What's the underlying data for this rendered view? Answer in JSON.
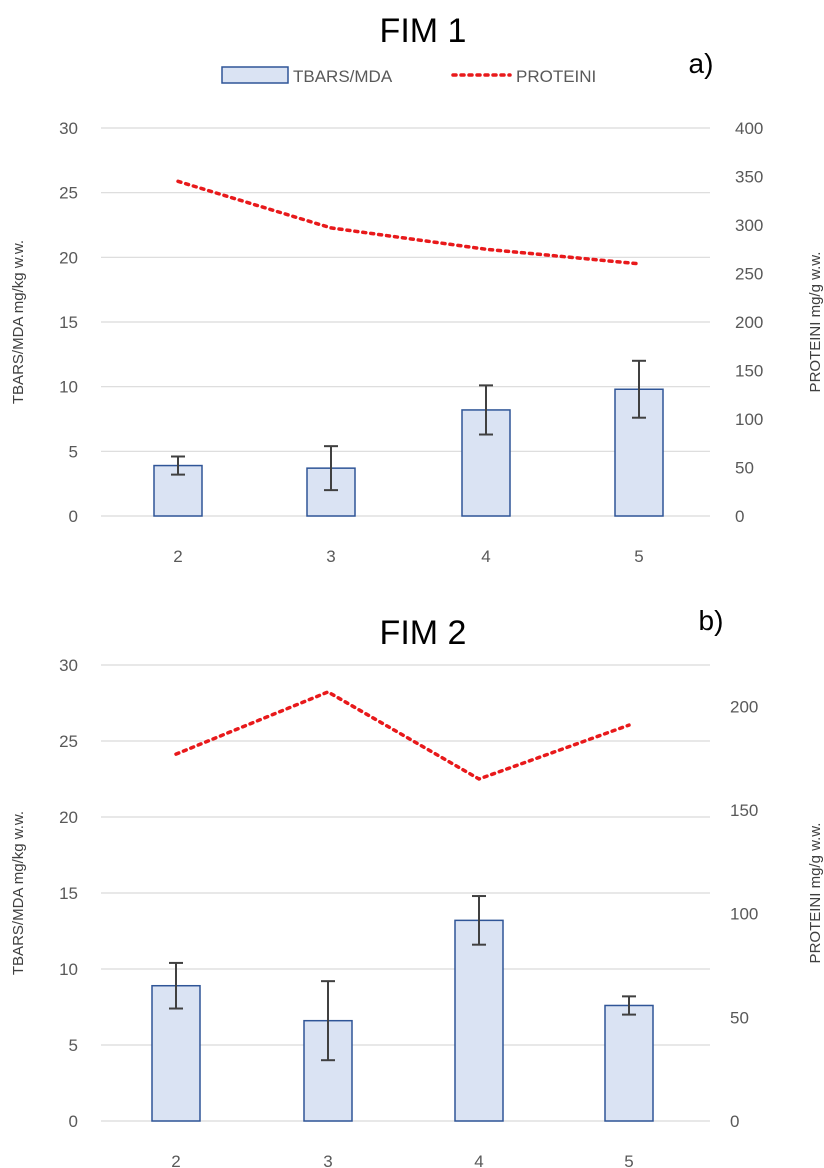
{
  "chart_data": [
    {
      "type": "bar",
      "title": "FIM 1",
      "panel_label": "a)",
      "categories": [
        "2",
        "3",
        "4",
        "5"
      ],
      "legend": {
        "position": "top",
        "entries": [
          "TBARS/MDA",
          "PROTEINI"
        ]
      },
      "ylabel": "TBARS/MDA mg/kg w.w.",
      "y2label": "PROTEINI mg/g w.w.",
      "ylim": [
        0,
        30
      ],
      "yticks": [
        "0",
        "5",
        "10",
        "15",
        "20",
        "25",
        "30"
      ],
      "y2lim": [
        0,
        400
      ],
      "y2ticks": [
        "0",
        "50",
        "100",
        "150",
        "200",
        "250",
        "300",
        "350",
        "400"
      ],
      "grid": true,
      "series": [
        {
          "name": "TBARS/MDA",
          "kind": "bar",
          "axis": "left",
          "values": [
            3.9,
            3.7,
            8.2,
            9.8
          ],
          "errors": [
            0.7,
            1.7,
            1.9,
            2.2
          ]
        },
        {
          "name": "PROTEINI",
          "kind": "line",
          "style": "dotted",
          "axis": "right",
          "values": [
            345,
            297,
            275,
            260
          ]
        }
      ]
    },
    {
      "type": "bar",
      "title": "FIM 2",
      "panel_label": "b)",
      "categories": [
        "2",
        "3",
        "4",
        "5"
      ],
      "ylabel": "TBARS/MDA mg/kg w.w.",
      "y2label": "PROTEINI mg/g w.w.",
      "ylim": [
        0,
        30
      ],
      "yticks": [
        "0",
        "5",
        "10",
        "15",
        "20",
        "25",
        "30"
      ],
      "y2lim": [
        0,
        220
      ],
      "y2ticks": [
        "0",
        "50",
        "100",
        "150",
        "200"
      ],
      "grid": true,
      "series": [
        {
          "name": "TBARS/MDA",
          "kind": "bar",
          "axis": "left",
          "values": [
            8.9,
            6.6,
            13.2,
            7.6
          ],
          "errors": [
            1.5,
            2.6,
            1.6,
            0.6
          ]
        },
        {
          "name": "PROTEINI",
          "kind": "line",
          "style": "dotted",
          "axis": "right",
          "values": [
            177,
            207,
            165,
            191
          ]
        }
      ]
    }
  ],
  "colors": {
    "bar_fill": "#dae3f3",
    "bar_stroke": "#2f5597",
    "line": "#e8191b",
    "grid": "#d9d9d9",
    "error_bar": "#404040",
    "tick_text": "#595959"
  }
}
